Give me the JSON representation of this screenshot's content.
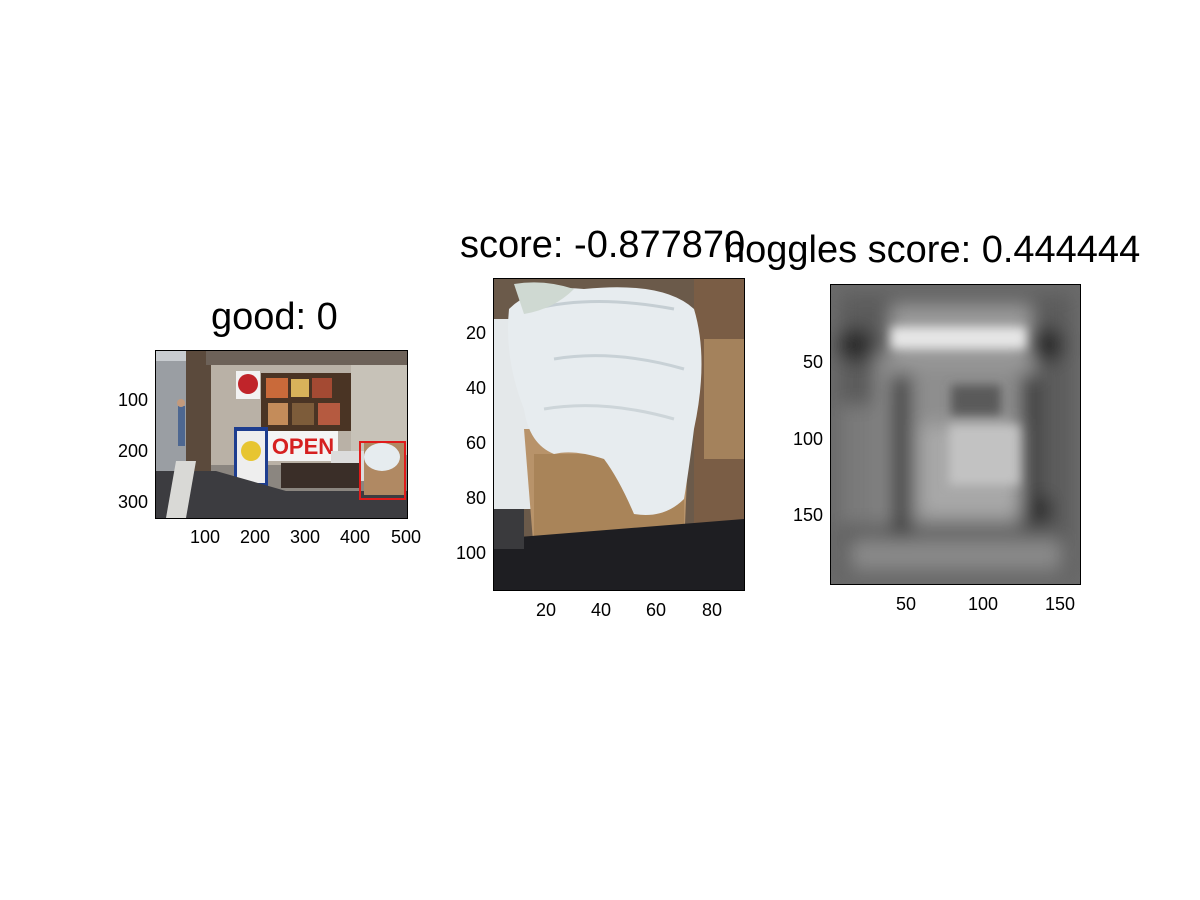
{
  "panels": [
    {
      "title": "good: 0",
      "yticks": [
        "100",
        "200",
        "300"
      ],
      "xticks": [
        "100",
        "200",
        "300",
        "400",
        "500"
      ],
      "image": "street shop scene with storefront and OPEN sign",
      "highlight_color": "#e01b1b",
      "sign_text": "OPEN"
    },
    {
      "title": "score: -0.877870",
      "yticks": [
        "20",
        "40",
        "60",
        "80",
        "100"
      ],
      "xticks": [
        "20",
        "40",
        "60",
        "80"
      ],
      "image": "crop of white plastic-wrapped box"
    },
    {
      "title": "hoggles score: 0.444444",
      "yticks": [
        "50",
        "100",
        "150"
      ],
      "xticks": [
        "50",
        "100",
        "150"
      ],
      "image": "grayscale HOG visualization"
    }
  ]
}
